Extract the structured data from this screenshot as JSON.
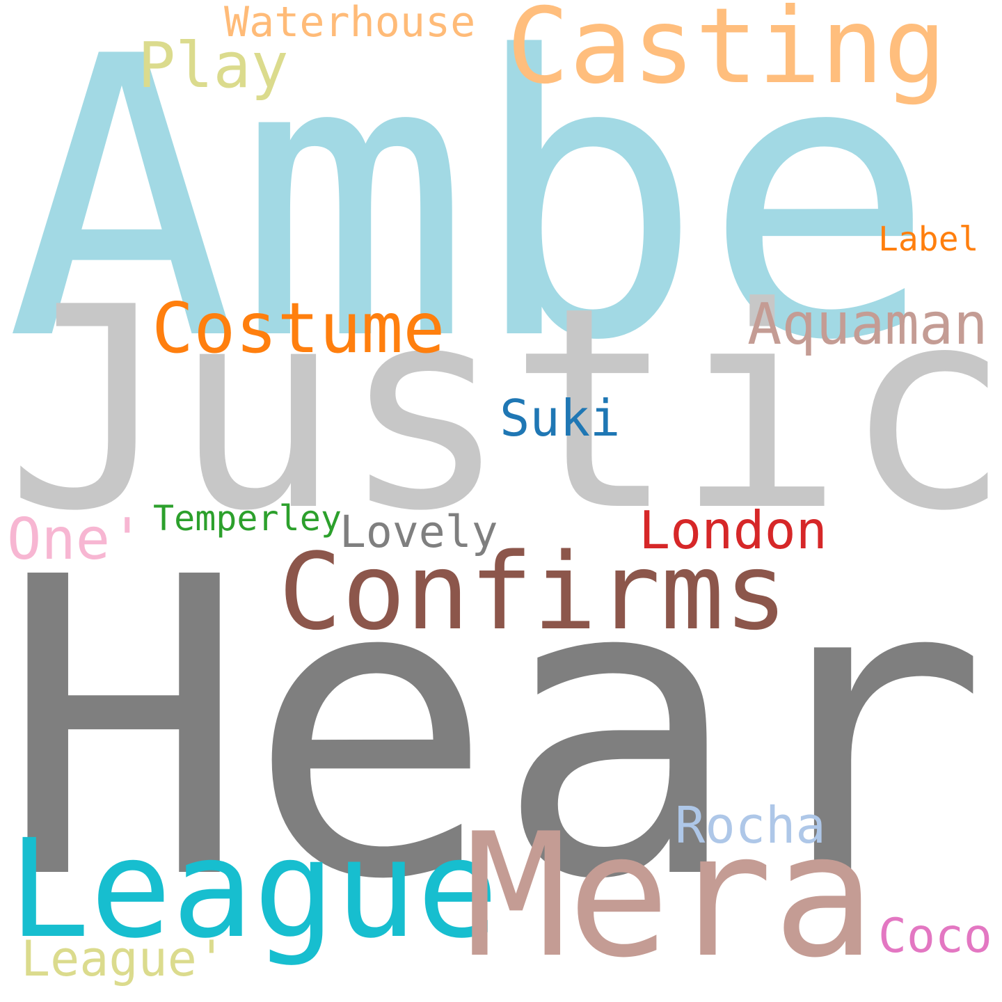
{
  "words": [
    {
      "key": "amber",
      "text": "Amber",
      "color": "#a2d9e4"
    },
    {
      "key": "justice",
      "text": "Justice",
      "color": "#c7c7c7"
    },
    {
      "key": "heard",
      "text": "Heard",
      "color": "#7f7f7f"
    },
    {
      "key": "casting",
      "text": "Casting",
      "color": "#ffbe7d"
    },
    {
      "key": "waterhouse",
      "text": "Waterhouse",
      "color": "#ffbb78"
    },
    {
      "key": "play",
      "text": "Play",
      "color": "#dbdb8d"
    },
    {
      "key": "label",
      "text": "Label",
      "color": "#ff7f0e"
    },
    {
      "key": "costume",
      "text": "Costume",
      "color": "#ff7f0e"
    },
    {
      "key": "aquaman",
      "text": "Aquaman",
      "color": "#c49c94"
    },
    {
      "key": "suki",
      "text": "Suki",
      "color": "#1f77b4"
    },
    {
      "key": "temperley",
      "text": "Temperley",
      "color": "#2ca02c"
    },
    {
      "key": "one",
      "text": "One'",
      "color": "#f7b6d2"
    },
    {
      "key": "lovely",
      "text": "Lovely",
      "color": "#7f7f7f"
    },
    {
      "key": "london",
      "text": "London",
      "color": "#d62728"
    },
    {
      "key": "confirms",
      "text": "Confirms",
      "color": "#8c564b"
    },
    {
      "key": "rocha",
      "text": "Rocha",
      "color": "#aec7e8"
    },
    {
      "key": "league",
      "text": "League",
      "color": "#17becf"
    },
    {
      "key": "mera",
      "text": "Mera",
      "color": "#c49c94"
    },
    {
      "key": "coco",
      "text": "Coco",
      "color": "#e377c2"
    },
    {
      "key": "league2",
      "text": "League'",
      "color": "#dbdb8d"
    }
  ]
}
